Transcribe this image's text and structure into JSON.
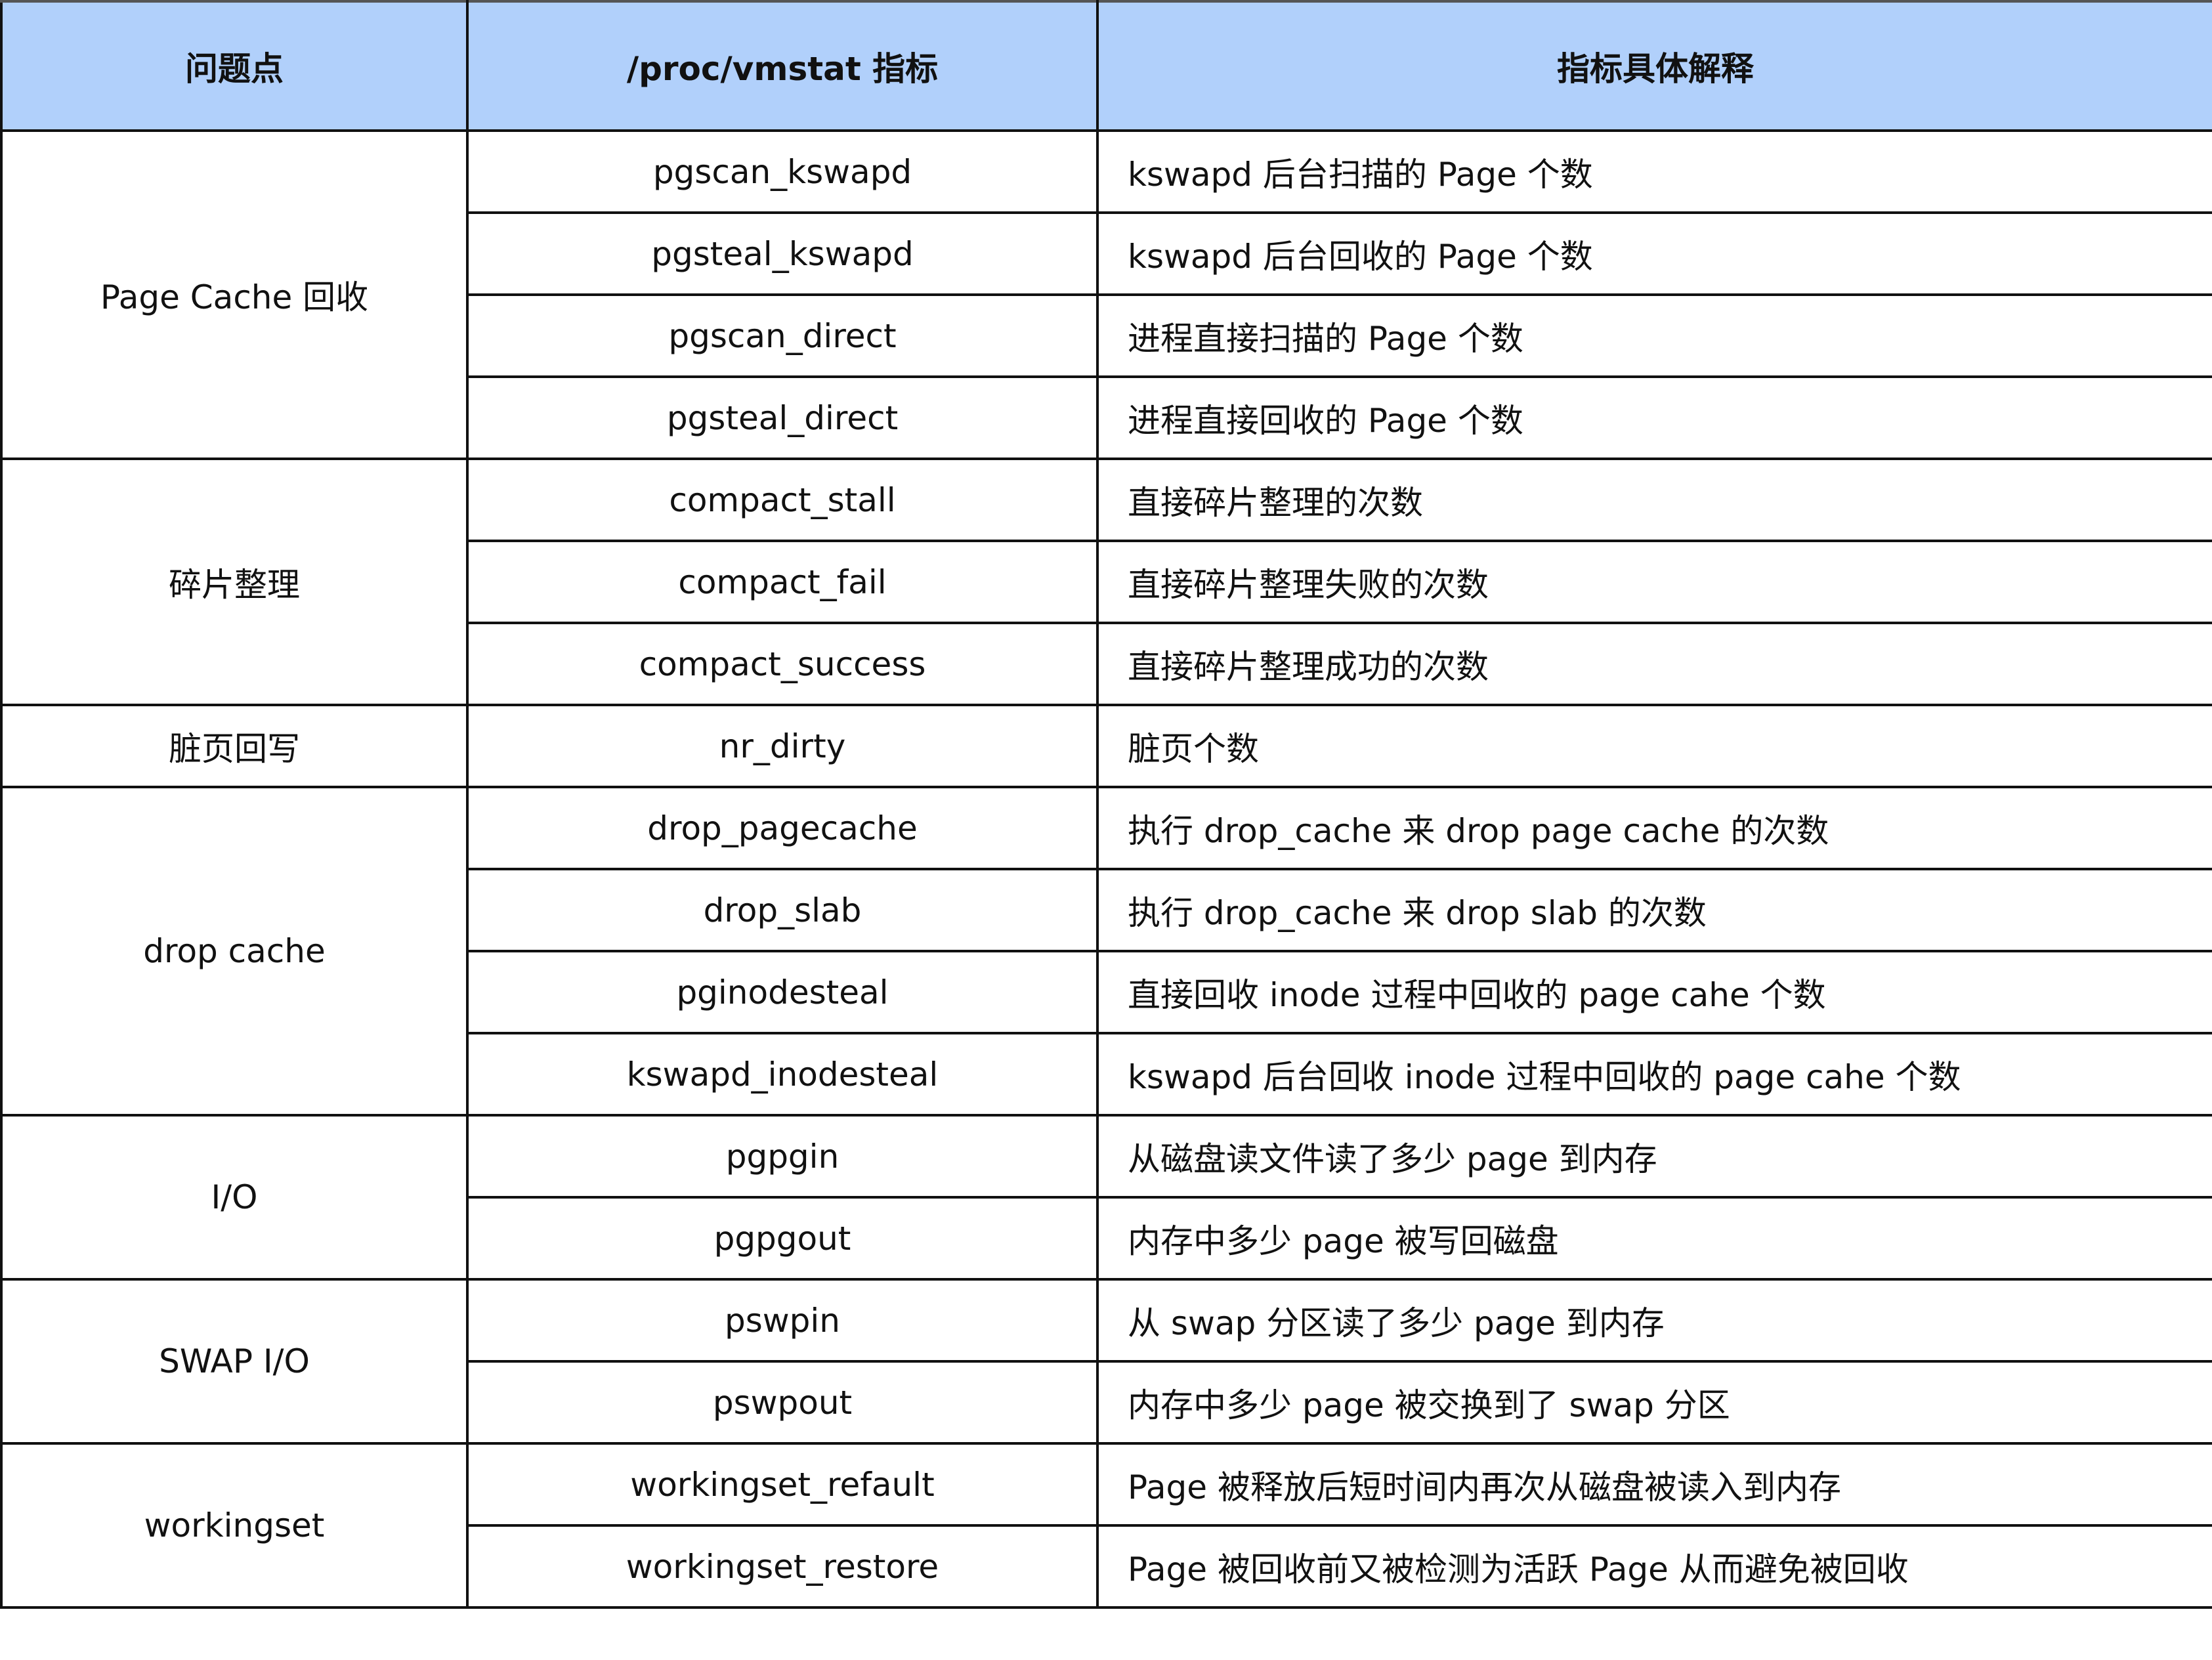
{
  "header": {
    "col1": "问题点",
    "col2": "/proc/vmstat 指标",
    "col3": "指标具体解释"
  },
  "groups": [
    {
      "name": "Page Cache 回收",
      "rows": [
        {
          "metric": "pgscan_kswapd",
          "desc": "kswapd 后台扫描的 Page 个数"
        },
        {
          "metric": "pgsteal_kswapd",
          "desc": "kswapd 后台回收的 Page 个数"
        },
        {
          "metric": "pgscan_direct",
          "desc": "进程直接扫描的 Page 个数"
        },
        {
          "metric": "pgsteal_direct",
          "desc": "进程直接回收的 Page 个数"
        }
      ]
    },
    {
      "name": "碎片整理",
      "rows": [
        {
          "metric": "compact_stall",
          "desc": "直接碎片整理的次数"
        },
        {
          "metric": "compact_fail",
          "desc": "直接碎片整理失败的次数"
        },
        {
          "metric": "compact_success",
          "desc": "直接碎片整理成功的次数"
        }
      ]
    },
    {
      "name": "脏页回写",
      "rows": [
        {
          "metric": "nr_dirty",
          "desc": "脏页个数"
        }
      ]
    },
    {
      "name": "drop cache",
      "rows": [
        {
          "metric": "drop_pagecache",
          "desc": "执行 drop_cache 来 drop page cache 的次数"
        },
        {
          "metric": "drop_slab",
          "desc": "执行 drop_cache 来 drop slab 的次数"
        },
        {
          "metric": "pginodesteal",
          "desc": "直接回收 inode 过程中回收的 page cahe 个数"
        },
        {
          "metric": "kswapd_inodesteal",
          "desc": "kswapd 后台回收 inode 过程中回收的 page cahe 个数"
        }
      ]
    },
    {
      "name": "I/O",
      "rows": [
        {
          "metric": "pgpgin",
          "desc": "从磁盘读文件读了多少 page 到内存"
        },
        {
          "metric": "pgpgout",
          "desc": "内存中多少 page 被写回磁盘"
        }
      ]
    },
    {
      "name": "SWAP I/O",
      "rows": [
        {
          "metric": "pswpin",
          "desc": "从 swap 分区读了多少 page 到内存"
        },
        {
          "metric": "pswpout",
          "desc": "内存中多少 page 被交换到了 swap 分区"
        }
      ]
    },
    {
      "name": "workingset",
      "rows": [
        {
          "metric": "workingset_refault",
          "desc": "Page 被释放后短时间内再次从磁盘被读入到内存"
        },
        {
          "metric": "workingset_restore",
          "desc": "Page 被回收前又被检测为活跃 Page 从而避免被回收"
        }
      ]
    }
  ],
  "colors": {
    "header_bg": "#b1d0fb",
    "border": "#111111"
  }
}
